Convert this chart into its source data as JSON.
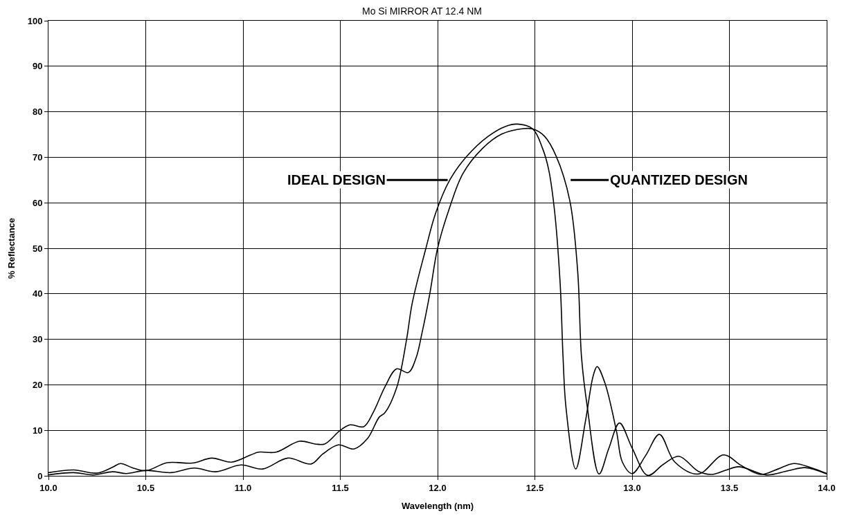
{
  "chart_data": {
    "type": "line",
    "title": "Mo Si MIRROR AT 12.4 NM",
    "xlabel": "Wavelength (nm)",
    "ylabel": "% Reflectance",
    "xlim": [
      10,
      14
    ],
    "ylim": [
      0,
      100
    ],
    "xticks": [
      {
        "value": 10,
        "label": "10.0"
      },
      10.5,
      {
        "value": 11,
        "label": "11.0"
      },
      11.5,
      {
        "value": 12,
        "label": "12.0"
      },
      12.5,
      {
        "value": 13,
        "label": "13.0"
      },
      13.5,
      {
        "value": 14,
        "label": "14.0"
      }
    ],
    "yticks": [
      0,
      10,
      20,
      30,
      40,
      50,
      60,
      70,
      80,
      90,
      100
    ],
    "grid": true,
    "marker": "none",
    "line_style": "solid",
    "series": [
      {
        "color": "#000000",
        "x": [
          10.0,
          10.13,
          10.23,
          10.33,
          10.4,
          10.5,
          10.63,
          10.75,
          10.86,
          10.99,
          11.1,
          11.23,
          11.35,
          11.41,
          11.49,
          11.57,
          11.64,
          11.7,
          11.73,
          11.79,
          11.84,
          11.87,
          11.94,
          11.99,
          12.06,
          12.15,
          12.26,
          12.35,
          12.41,
          12.49,
          12.54,
          12.57,
          12.6,
          12.63,
          12.645,
          12.66,
          12.71,
          12.76,
          12.8,
          12.82,
          12.86,
          12.92,
          12.95,
          13.0,
          13.07,
          13.14,
          13.22,
          13.34,
          13.47,
          13.56,
          13.66,
          13.75,
          13.83,
          13.92,
          14.0
        ],
        "values": [
          0.2,
          0.7,
          0.2,
          0.9,
          0.5,
          1.2,
          0.7,
          1.7,
          0.9,
          2.4,
          1.5,
          3.9,
          2.6,
          4.8,
          6.8,
          5.9,
          8.2,
          12.9,
          13.9,
          19.4,
          29.8,
          38,
          50,
          57.7,
          64.8,
          70.2,
          74.6,
          76.8,
          77.3,
          76.2,
          71.9,
          67.5,
          58.7,
          42.3,
          26,
          15,
          1.5,
          12,
          22,
          24,
          20.4,
          9.7,
          3,
          0.5,
          4.5,
          9.1,
          3,
          0.4,
          4.6,
          2.3,
          0.3,
          1.5,
          2.7,
          1.8,
          0.5
        ]
      },
      {
        "color": "#000000",
        "x": [
          10.0,
          10.13,
          10.25,
          10.33,
          10.37,
          10.43,
          10.5,
          10.61,
          10.74,
          10.84,
          10.94,
          11.04,
          11.08,
          11.17,
          11.29,
          11.37,
          11.42,
          11.5,
          11.55,
          11.62,
          11.67,
          11.73,
          11.79,
          11.85,
          11.89,
          11.92,
          11.96,
          12.0,
          12.06,
          12.13,
          12.23,
          12.33,
          12.44,
          12.49,
          12.55,
          12.61,
          12.68,
          12.72,
          12.74,
          12.77,
          12.83,
          12.88,
          12.935,
          13.0,
          13.08,
          13.16,
          13.24,
          13.34,
          13.41,
          13.48,
          13.55,
          13.69,
          13.8,
          13.89,
          14.0
        ],
        "values": [
          0.7,
          1.3,
          0.6,
          1.9,
          2.7,
          1.8,
          1.1,
          2.9,
          2.8,
          3.9,
          3.0,
          4.6,
          5.2,
          5.2,
          7.6,
          7.0,
          7.0,
          10,
          11.2,
          10.8,
          14,
          19.6,
          23.5,
          22.7,
          26,
          31.4,
          40,
          50,
          58.7,
          66.4,
          71.9,
          75.1,
          76.3,
          76.2,
          74.6,
          70.2,
          60.4,
          45,
          26,
          15,
          0.4,
          6,
          11.6,
          6.1,
          0.1,
          2.5,
          4.3,
          1,
          0.3,
          1.2,
          2.0,
          0.2,
          1.1,
          1.8,
          0.4
        ]
      }
    ],
    "annotations": [
      "IDEAL DESIGN",
      "QUANTIZED DESIGN"
    ]
  }
}
